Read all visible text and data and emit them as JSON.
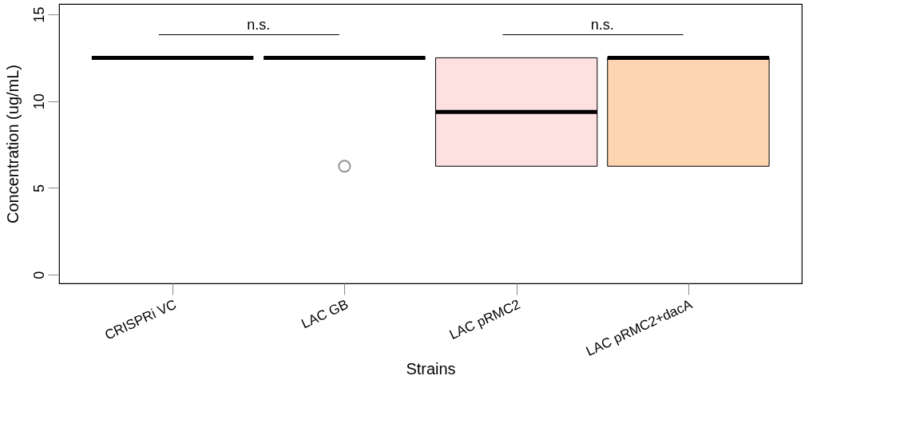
{
  "chart_data": {
    "type": "box",
    "xlabel": "Strains",
    "ylabel": "Concentration (ug/mL)",
    "categories": [
      "CRISPRi VC",
      "LAC GB",
      "LAC pRMC2",
      "LAC pRMC2+dacA"
    ],
    "boxes": [
      {
        "low": 12.5,
        "q1": 12.5,
        "median": 12.5,
        "q3": 12.5,
        "high": 12.5
      },
      {
        "low": 12.5,
        "q1": 12.5,
        "median": 12.5,
        "q3": 12.5,
        "high": 12.5,
        "outliers": [
          6.25
        ]
      },
      {
        "low": 6.25,
        "q1": 6.25,
        "median": 9.375,
        "q3": 12.5,
        "high": 12.5
      },
      {
        "low": 6.25,
        "q1": 6.25,
        "median": 12.5,
        "q3": 12.5,
        "high": 12.5
      }
    ],
    "colors": [
      "#000000",
      "#000000",
      "#fde0e0",
      "#fdd5b0"
    ],
    "ylim": [
      -0.5,
      15.6
    ],
    "yticks": [
      0,
      5,
      10,
      15
    ],
    "annotations": [
      "n.s.",
      "n.s."
    ],
    "grid": false
  }
}
